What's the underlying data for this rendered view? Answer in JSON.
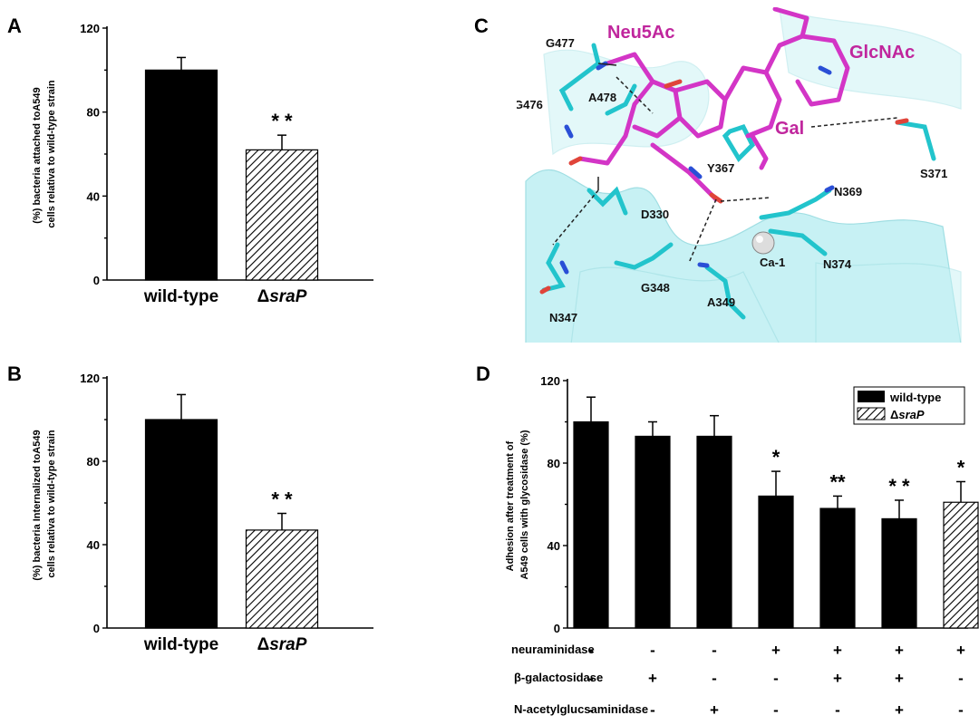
{
  "colors": {
    "bar_solid": "#000000",
    "hatch": "#000000",
    "ribbon": "#a8e6ea",
    "stick_cyan": "#22c4cc",
    "stick_magenta": "#d335c6",
    "oxygen": "#e0443a",
    "nitrogen": "#2a4fd6",
    "label_magenta": "#c0269d"
  },
  "panels": {
    "A": {
      "letter": "A"
    },
    "B": {
      "letter": "B"
    },
    "C": {
      "letter": "C"
    },
    "D": {
      "letter": "D"
    }
  },
  "chart_data": [
    {
      "panel": "A",
      "type": "bar",
      "ylabel": [
        "(%) bacteria attached toA549",
        "cells relativa to wild-type strain"
      ],
      "categories": [
        {
          "prefix": "",
          "text": "wild-type",
          "italic": ""
        },
        {
          "prefix": "Δ",
          "text": "",
          "italic": "sraP"
        }
      ],
      "values": [
        100,
        62
      ],
      "errors": [
        6,
        7
      ],
      "fills": [
        "solid",
        "hatched"
      ],
      "significance": [
        "",
        "* *"
      ],
      "ylim": [
        0,
        120
      ],
      "yticks": [
        "0",
        "40",
        "80",
        "120"
      ]
    },
    {
      "panel": "B",
      "type": "bar",
      "ylabel": [
        "(%) bacteria Internalized toA549",
        "cells relativa to wild-type strain"
      ],
      "categories": [
        {
          "prefix": "",
          "text": "wild-type",
          "italic": ""
        },
        {
          "prefix": "Δ",
          "text": "",
          "italic": "sraP"
        }
      ],
      "values": [
        100,
        47
      ],
      "errors": [
        12,
        8
      ],
      "fills": [
        "solid",
        "hatched"
      ],
      "significance": [
        "",
        "* *"
      ],
      "ylim": [
        0,
        120
      ],
      "yticks": [
        "0",
        "40",
        "80",
        "120"
      ]
    },
    {
      "panel": "D",
      "type": "bar",
      "ylabel": [
        "Adhesion after treatment of",
        "A549 cells with glycosidase (%)"
      ],
      "values": [
        100,
        93,
        93,
        64,
        58,
        53,
        61
      ],
      "errors": [
        12,
        7,
        10,
        12,
        6,
        9,
        10
      ],
      "fills": [
        "solid",
        "solid",
        "solid",
        "solid",
        "solid",
        "solid",
        "hatched"
      ],
      "significance": [
        "",
        "",
        "",
        "*",
        "**",
        "* *",
        "*"
      ],
      "ylim": [
        0,
        120
      ],
      "yticks": [
        "0",
        "40",
        "80",
        "120"
      ],
      "legend": [
        {
          "prefix": "",
          "text": "wild-type",
          "italic": ""
        },
        {
          "prefix": "Δ",
          "text": "",
          "italic": "sraP"
        }
      ],
      "treatments": [
        {
          "name": "neuraminidase",
          "marks": [
            "-",
            "-",
            "-",
            "+",
            "+",
            "+",
            "+"
          ]
        },
        {
          "name": "β-galactosidase",
          "marks": [
            "-",
            "+",
            "-",
            "-",
            "+",
            "+",
            "-"
          ]
        },
        {
          "name": "N-acetylglucsaminidase",
          "marks": [
            "-",
            "-",
            "+",
            "-",
            "-",
            "+",
            "-"
          ]
        }
      ]
    }
  ],
  "structure": {
    "sugar_labels": [
      "Neu5Ac",
      "GlcNAc",
      "Gal"
    ],
    "residue_labels": [
      "G477",
      "A478",
      "G476",
      "Y367",
      "N369",
      "S371",
      "D330",
      "Ca-1",
      "N374",
      "G348",
      "A349",
      "N347"
    ]
  }
}
